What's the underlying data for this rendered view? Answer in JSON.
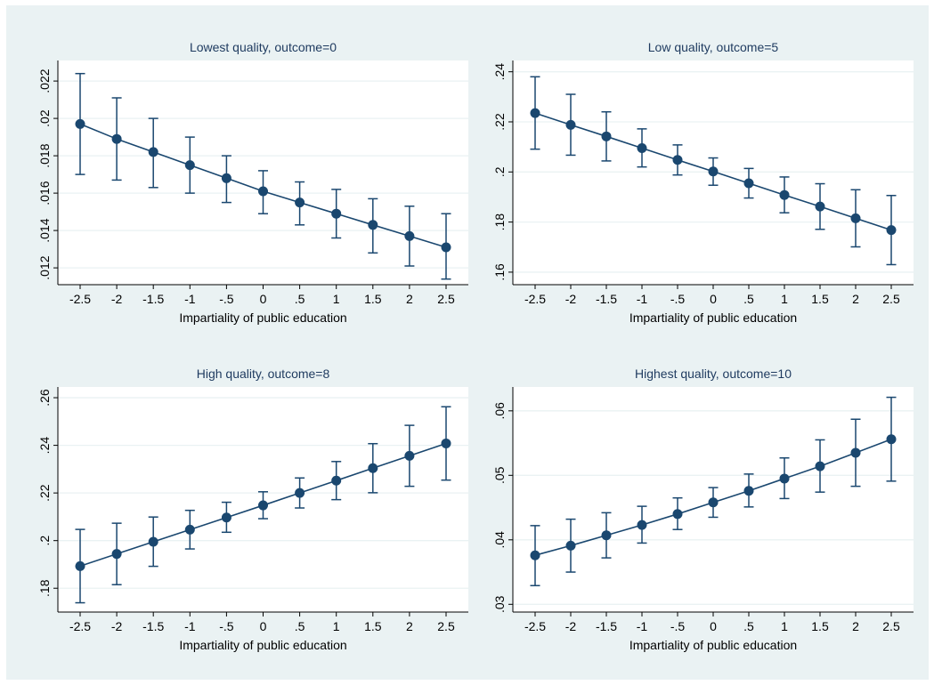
{
  "chart_data": [
    {
      "type": "line",
      "title": "Lowest quality, outcome=0",
      "xlabel": "Impartiality of public education",
      "ylabel": "",
      "x": [
        -2.5,
        -2,
        -1.5,
        -1,
        -0.5,
        0,
        0.5,
        1,
        1.5,
        2,
        2.5
      ],
      "x_tick_labels": [
        "-2.5",
        "-2",
        "-1.5",
        "-1",
        "-.5",
        "0",
        ".5",
        "1",
        "1.5",
        "2",
        "2.5"
      ],
      "y_ticks": [
        0.012,
        0.014,
        0.016,
        0.018,
        0.02,
        0.022
      ],
      "y_tick_labels": [
        ".012",
        ".014",
        ".016",
        ".018",
        ".02",
        ".022"
      ],
      "ylim": [
        0.0111,
        0.0231
      ],
      "grid": true,
      "series": [
        {
          "values": [
            0.0197,
            0.0189,
            0.0182,
            0.0175,
            0.0168,
            0.0161,
            0.0155,
            0.0149,
            0.0143,
            0.0137,
            0.0131
          ],
          "ci_low": [
            0.017,
            0.0167,
            0.0163,
            0.016,
            0.0155,
            0.0149,
            0.0143,
            0.0136,
            0.0128,
            0.0121,
            0.0114
          ],
          "ci_high": [
            0.0224,
            0.0211,
            0.02,
            0.019,
            0.018,
            0.0172,
            0.0166,
            0.0162,
            0.0157,
            0.0153,
            0.0149
          ]
        }
      ]
    },
    {
      "type": "line",
      "title": "Low quality, outcome=5",
      "xlabel": "Impartiality of public education",
      "ylabel": "",
      "x": [
        -2.5,
        -2,
        -1.5,
        -1,
        -0.5,
        0,
        0.5,
        1,
        1.5,
        2,
        2.5
      ],
      "x_tick_labels": [
        "-2.5",
        "-2",
        "-1.5",
        "-1",
        "-.5",
        "0",
        ".5",
        "1",
        "1.5",
        "2",
        "2.5"
      ],
      "y_ticks": [
        0.16,
        0.18,
        0.2,
        0.22,
        0.24
      ],
      "y_tick_labels": [
        ".16",
        ".18",
        ".2",
        ".22",
        ".24"
      ],
      "ylim": [
        0.155,
        0.2445
      ],
      "grid": true,
      "series": [
        {
          "values": [
            0.2235,
            0.2188,
            0.2142,
            0.2095,
            0.2048,
            0.2002,
            0.1955,
            0.1908,
            0.1862,
            0.1815,
            0.1768
          ],
          "ci_low": [
            0.2091,
            0.2067,
            0.2044,
            0.202,
            0.1988,
            0.1947,
            0.1896,
            0.1837,
            0.1771,
            0.1701,
            0.163
          ],
          "ci_high": [
            0.238,
            0.231,
            0.224,
            0.2172,
            0.2108,
            0.2056,
            0.2014,
            0.198,
            0.1953,
            0.1929,
            0.1906
          ]
        }
      ]
    },
    {
      "type": "line",
      "title": "High quality, outcome=8",
      "xlabel": "Impartiality of public education",
      "ylabel": "",
      "x": [
        -2.5,
        -2,
        -1.5,
        -1,
        -0.5,
        0,
        0.5,
        1,
        1.5,
        2,
        2.5
      ],
      "x_tick_labels": [
        "-2.5",
        "-2",
        "-1.5",
        "-1",
        "-.5",
        "0",
        ".5",
        "1",
        "1.5",
        "2",
        "2.5"
      ],
      "y_ticks": [
        0.18,
        0.2,
        0.22,
        0.24,
        0.26
      ],
      "y_tick_labels": [
        ".18",
        ".2",
        ".22",
        ".24",
        ".26"
      ],
      "ylim": [
        0.17,
        0.2645
      ],
      "grid": true,
      "series": [
        {
          "values": [
            0.1893,
            0.1944,
            0.1995,
            0.2046,
            0.2097,
            0.2148,
            0.22,
            0.2252,
            0.2304,
            0.2356,
            0.2408
          ],
          "ci_low": [
            0.1739,
            0.1815,
            0.1892,
            0.1965,
            0.2035,
            0.2092,
            0.2137,
            0.2172,
            0.2201,
            0.2228,
            0.2254
          ],
          "ci_high": [
            0.2047,
            0.2073,
            0.2099,
            0.2127,
            0.2161,
            0.2205,
            0.2263,
            0.2332,
            0.2407,
            0.2484,
            0.2562
          ]
        }
      ]
    },
    {
      "type": "line",
      "title": "Highest quality, outcome=10",
      "xlabel": "Impartiality of public education",
      "ylabel": "",
      "x": [
        -2.5,
        -2,
        -1.5,
        -1,
        -0.5,
        0,
        0.5,
        1,
        1.5,
        2,
        2.5
      ],
      "x_tick_labels": [
        "-2.5",
        "-2",
        "-1.5",
        "-1",
        "-.5",
        "0",
        ".5",
        "1",
        "1.5",
        "2",
        "2.5"
      ],
      "y_ticks": [
        0.03,
        0.04,
        0.05,
        0.06
      ],
      "y_tick_labels": [
        ".03",
        ".04",
        ".05",
        ".06"
      ],
      "ylim": [
        0.0288,
        0.0637
      ],
      "grid": true,
      "series": [
        {
          "values": [
            0.0376,
            0.0391,
            0.0407,
            0.0423,
            0.044,
            0.0458,
            0.0476,
            0.0495,
            0.0514,
            0.0535,
            0.0556
          ],
          "ci_low": [
            0.0329,
            0.035,
            0.0372,
            0.0395,
            0.0416,
            0.0435,
            0.0451,
            0.0464,
            0.0474,
            0.0483,
            0.0491
          ],
          "ci_high": [
            0.0422,
            0.0432,
            0.0442,
            0.0452,
            0.0465,
            0.0481,
            0.0502,
            0.0527,
            0.0555,
            0.0587,
            0.0621
          ]
        }
      ]
    }
  ],
  "colors": {
    "figure_background": "#eaf2f3",
    "plot_background": "#ffffff",
    "grid": "#eaf2f3",
    "series": "#1a476f",
    "title": "#1e3a5f"
  }
}
